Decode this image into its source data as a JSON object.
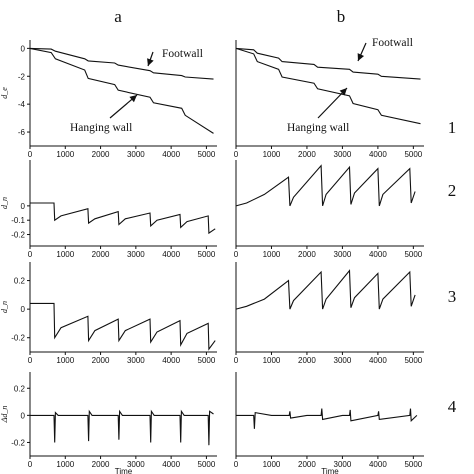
{
  "column_labels": [
    "a",
    "b"
  ],
  "row_labels": [
    "1",
    "2",
    "3",
    "4"
  ],
  "chart_data": [
    {
      "type": "line",
      "column": "a",
      "row": "1",
      "ylabel": "d_e",
      "xlim": [
        0,
        5300
      ],
      "ylim": [
        -7,
        0.6
      ],
      "yticks": [
        0,
        -2,
        -4,
        -6
      ],
      "xticks": [
        0,
        1000,
        2000,
        3000,
        4000,
        5000
      ],
      "annotations": [
        "Footwall",
        "Hanging wall"
      ],
      "series": [
        {
          "name": "Footwall",
          "x": [
            0,
            600,
            720,
            1550,
            1650,
            2400,
            2500,
            3400,
            3500,
            4300,
            4400,
            5200
          ],
          "y": [
            0,
            -0.05,
            -0.2,
            -0.75,
            -0.9,
            -1.05,
            -1.2,
            -1.6,
            -1.75,
            -1.95,
            -2.05,
            -2.2
          ]
        },
        {
          "name": "Hanging wall",
          "x": [
            0,
            600,
            720,
            1550,
            1650,
            2400,
            2500,
            3400,
            3500,
            4300,
            4400,
            5200
          ],
          "y": [
            0,
            -0.3,
            -0.75,
            -1.55,
            -2.15,
            -2.6,
            -3.0,
            -3.5,
            -3.9,
            -4.3,
            -4.8,
            -6.1
          ]
        }
      ]
    },
    {
      "type": "line",
      "column": "b",
      "row": "1",
      "ylabel": "",
      "xlim": [
        0,
        5300
      ],
      "ylim": [
        -7,
        0.6
      ],
      "yticks": [],
      "xticks": [
        0,
        1000,
        2000,
        3000,
        4000,
        5000
      ],
      "annotations": [
        "Footwall",
        "Hanging wall"
      ],
      "series": [
        {
          "name": "Footwall",
          "x": [
            0,
            500,
            600,
            1200,
            1300,
            2200,
            2300,
            3200,
            3300,
            4000,
            4100,
            5200
          ],
          "y": [
            0,
            -0.1,
            -0.35,
            -0.7,
            -0.95,
            -1.15,
            -1.35,
            -1.5,
            -1.7,
            -1.85,
            -2.0,
            -2.2
          ]
        },
        {
          "name": "Hanging wall",
          "x": [
            0,
            500,
            600,
            1200,
            1300,
            2200,
            2300,
            3200,
            3300,
            4000,
            4100,
            5200
          ],
          "y": [
            0,
            -0.4,
            -0.95,
            -1.5,
            -2.05,
            -2.5,
            -2.9,
            -3.4,
            -3.95,
            -4.4,
            -4.8,
            -5.4
          ]
        }
      ]
    },
    {
      "type": "line",
      "column": "a",
      "row": "2",
      "ylabel": "d_n",
      "xlim": [
        0,
        5300
      ],
      "ylim": [
        -0.28,
        0.32
      ],
      "yticks": [
        0,
        -0.1,
        -0.2
      ],
      "xticks": [
        0,
        1000,
        2000,
        3000,
        4000,
        5000
      ],
      "series": [
        {
          "x": [
            0,
            680,
            700,
            880,
            1640,
            1660,
            1840,
            2500,
            2520,
            2700,
            3400,
            3420,
            3600,
            4250,
            4270,
            4450,
            5050,
            5070,
            5250
          ],
          "y": [
            0.02,
            0.02,
            -0.1,
            -0.07,
            -0.02,
            -0.12,
            -0.09,
            -0.04,
            -0.13,
            -0.09,
            -0.05,
            -0.14,
            -0.1,
            -0.06,
            -0.15,
            -0.11,
            -0.07,
            -0.19,
            -0.16
          ]
        }
      ]
    },
    {
      "type": "line",
      "column": "b",
      "row": "2",
      "ylabel": "",
      "xlim": [
        0,
        5300
      ],
      "ylim": [
        -0.28,
        0.32
      ],
      "yticks": [],
      "xticks": [
        0,
        1000,
        2000,
        3000,
        4000,
        5000
      ],
      "series": [
        {
          "x": [
            0,
            300,
            800,
            1480,
            1520,
            1620,
            2400,
            2440,
            2540,
            3200,
            3240,
            3340,
            4000,
            4040,
            4140,
            4900,
            4940,
            5050
          ],
          "y": [
            0.0,
            0.02,
            0.08,
            0.2,
            0.0,
            0.06,
            0.28,
            0.0,
            0.08,
            0.27,
            0.01,
            0.09,
            0.26,
            0.0,
            0.08,
            0.26,
            0.02,
            0.1
          ]
        }
      ]
    },
    {
      "type": "line",
      "column": "a",
      "row": "3",
      "ylabel": "d_n",
      "xlim": [
        0,
        5300
      ],
      "ylim": [
        -0.3,
        0.33
      ],
      "yticks": [
        0.2,
        0,
        -0.2
      ],
      "xticks": [
        0,
        1000,
        2000,
        3000,
        4000,
        5000
      ],
      "series": [
        {
          "x": [
            0,
            680,
            700,
            880,
            1640,
            1660,
            1840,
            2500,
            2520,
            2700,
            3400,
            3420,
            3600,
            4250,
            4270,
            4450,
            5050,
            5070,
            5250
          ],
          "y": [
            0.04,
            0.04,
            -0.2,
            -0.13,
            -0.05,
            -0.22,
            -0.15,
            -0.07,
            -0.22,
            -0.15,
            -0.07,
            -0.23,
            -0.16,
            -0.08,
            -0.25,
            -0.17,
            -0.1,
            -0.28,
            -0.22
          ]
        }
      ]
    },
    {
      "type": "line",
      "column": "b",
      "row": "3",
      "ylabel": "",
      "xlim": [
        0,
        5300
      ],
      "ylim": [
        -0.3,
        0.33
      ],
      "yticks": [],
      "xticks": [
        0,
        1000,
        2000,
        3000,
        4000,
        5000
      ],
      "series": [
        {
          "x": [
            0,
            300,
            800,
            1480,
            1520,
            1620,
            2400,
            2440,
            2540,
            3200,
            3240,
            3340,
            4000,
            4040,
            4140,
            4900,
            4940,
            5050
          ],
          "y": [
            0.0,
            0.02,
            0.07,
            0.2,
            0.0,
            0.06,
            0.26,
            0.0,
            0.07,
            0.27,
            0.01,
            0.08,
            0.25,
            0.0,
            0.07,
            0.26,
            0.02,
            0.1
          ]
        }
      ]
    },
    {
      "type": "line",
      "column": "a",
      "row": "4",
      "ylabel": "Δd_n",
      "xlim": [
        0,
        5300
      ],
      "ylim": [
        -0.3,
        0.32
      ],
      "yticks": [
        0.2,
        0,
        -0.2
      ],
      "xticks": [
        0,
        1000,
        2000,
        3000,
        4000,
        5000
      ],
      "xlabel": "Time",
      "series": [
        {
          "x": [
            0,
            680,
            700,
            720,
            800,
            1640,
            1660,
            1680,
            1760,
            2500,
            2520,
            2540,
            2620,
            3400,
            3420,
            3440,
            3520,
            4250,
            4270,
            4290,
            4370,
            5050,
            5070,
            5090,
            5200
          ],
          "y": [
            0,
            0,
            -0.2,
            0.02,
            0,
            0,
            -0.19,
            0.03,
            0,
            0,
            -0.18,
            0.03,
            0,
            0,
            -0.2,
            0.03,
            0,
            0,
            -0.2,
            0.03,
            0,
            0,
            -0.22,
            0.03,
            0.01
          ]
        }
      ]
    },
    {
      "type": "line",
      "column": "b",
      "row": "4",
      "ylabel": "",
      "xlim": [
        0,
        5300
      ],
      "ylim": [
        -0.3,
        0.32
      ],
      "yticks": [],
      "xticks": [
        0,
        1000,
        2000,
        3000,
        4000,
        5000
      ],
      "xlabel": "Time",
      "series": [
        {
          "x": [
            0,
            500,
            520,
            540,
            1000,
            1500,
            1520,
            1540,
            2000,
            2400,
            2420,
            2440,
            3000,
            3200,
            3220,
            3240,
            4000,
            4020,
            4040,
            4900,
            4920,
            4940,
            5100
          ],
          "y": [
            0,
            0,
            -0.1,
            0.02,
            0,
            0,
            0.03,
            -0.02,
            0,
            0,
            0.05,
            -0.03,
            0,
            0,
            0.04,
            -0.04,
            0,
            0.03,
            -0.03,
            0,
            0.05,
            -0.04,
            0
          ]
        }
      ]
    }
  ]
}
